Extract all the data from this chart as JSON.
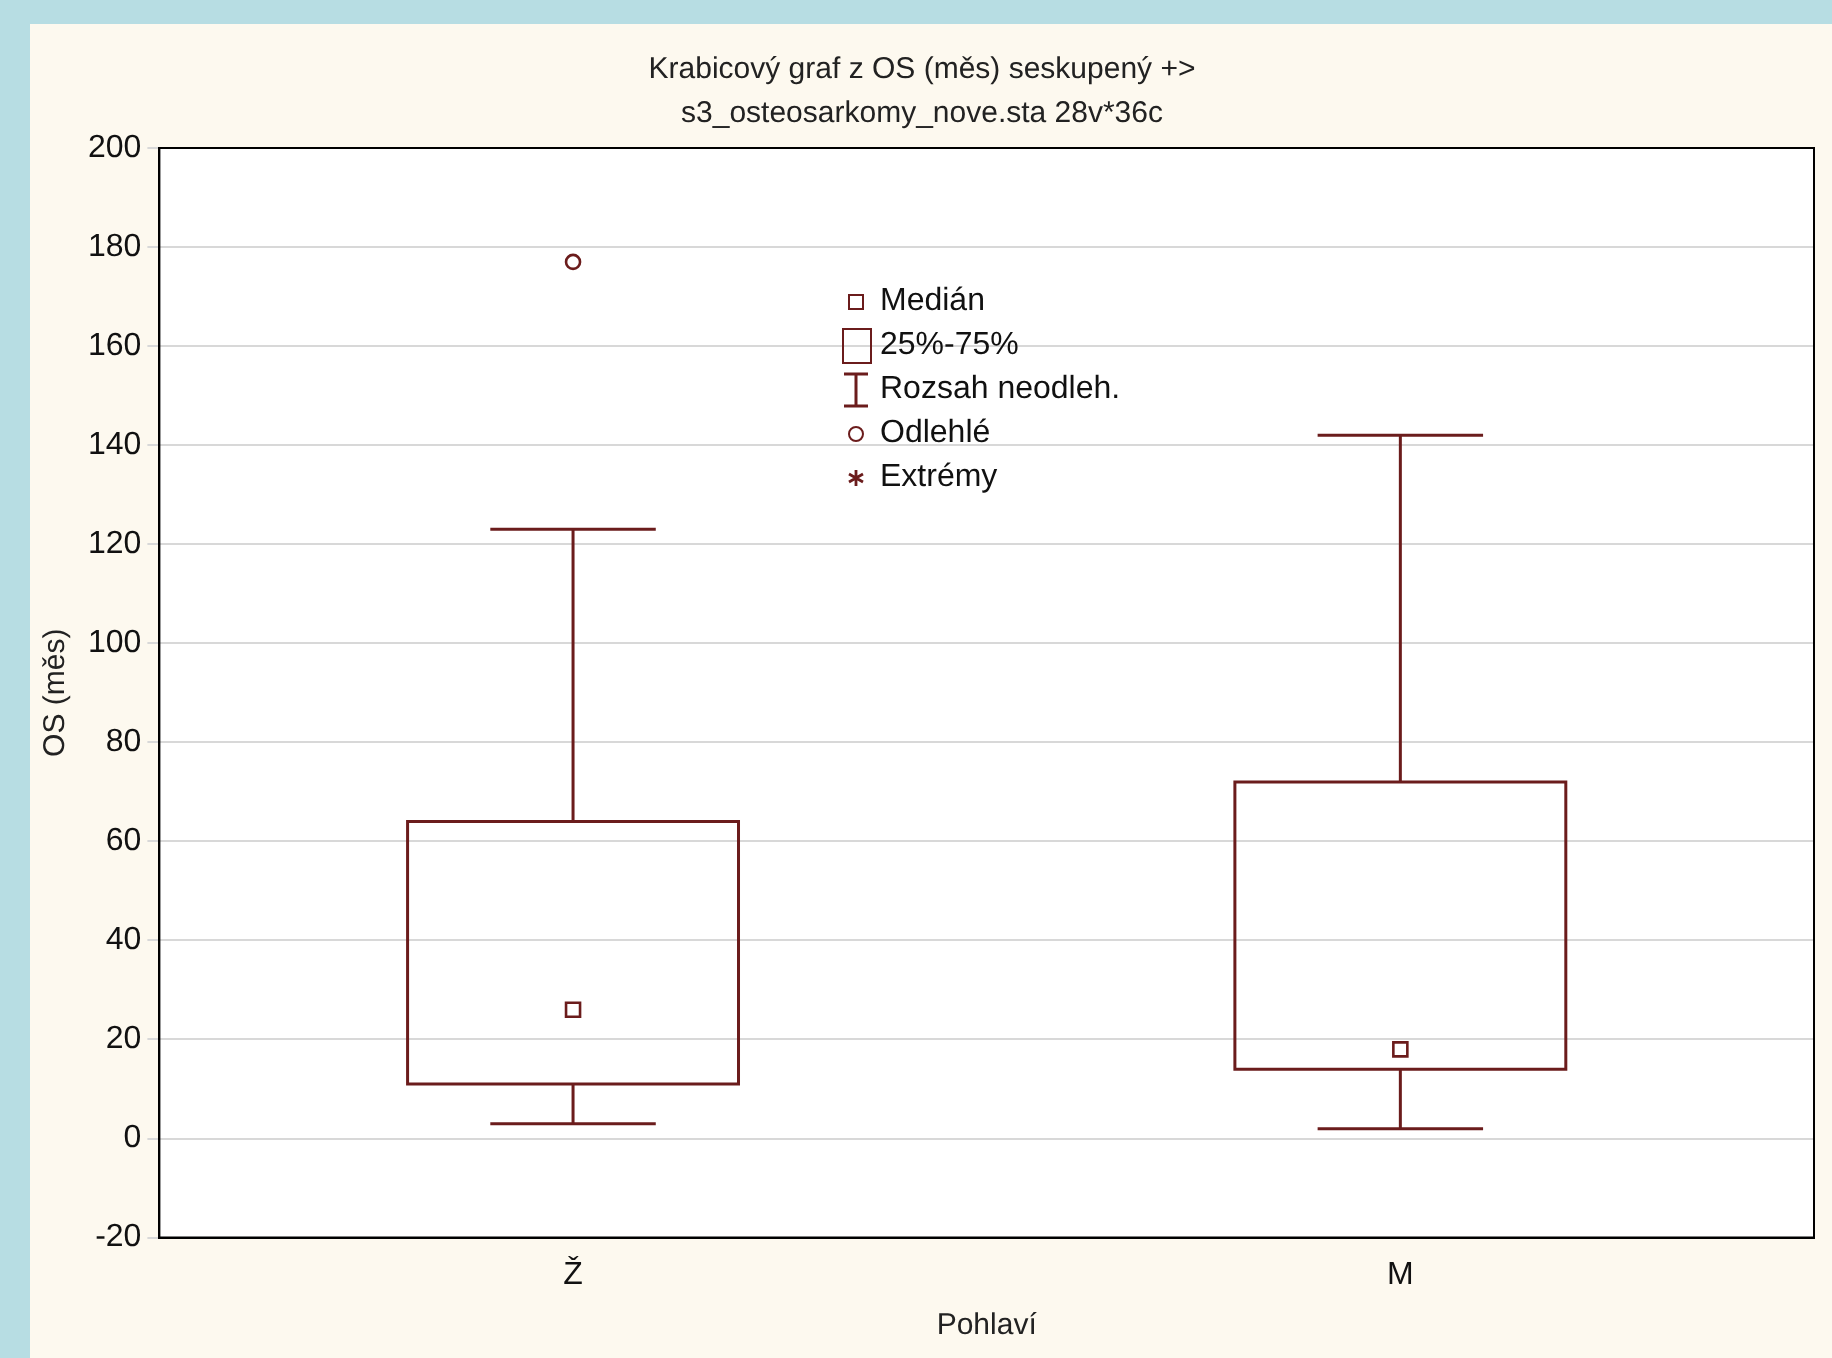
{
  "chart_data": {
    "type": "box",
    "title": "Krabicový graf z OS (měs) seskupený +>",
    "subtitle": "s3_osteosarkomy_nove.sta 28v*36c",
    "xlabel": "Pohlaví",
    "ylabel": "OS (měs)",
    "categories": [
      "Ž",
      "M"
    ],
    "color": "#6b1c1c",
    "boxes": [
      {
        "low": 3,
        "q1": 11,
        "median": 26,
        "q3": 64,
        "high": 123,
        "outliers": [
          177
        ]
      },
      {
        "low": 2,
        "q1": 14,
        "median": 18,
        "q3": 72,
        "high": 142
      }
    ],
    "ylim": [
      -20,
      200
    ],
    "yticks": [
      -20,
      0,
      20,
      40,
      60,
      80,
      100,
      120,
      140,
      160,
      180,
      200
    ],
    "grid": "y",
    "annotations": [
      "Medián",
      "25%-75%",
      "Rozsah neodleh.",
      "Odlehlé",
      "Extrémy"
    ]
  }
}
